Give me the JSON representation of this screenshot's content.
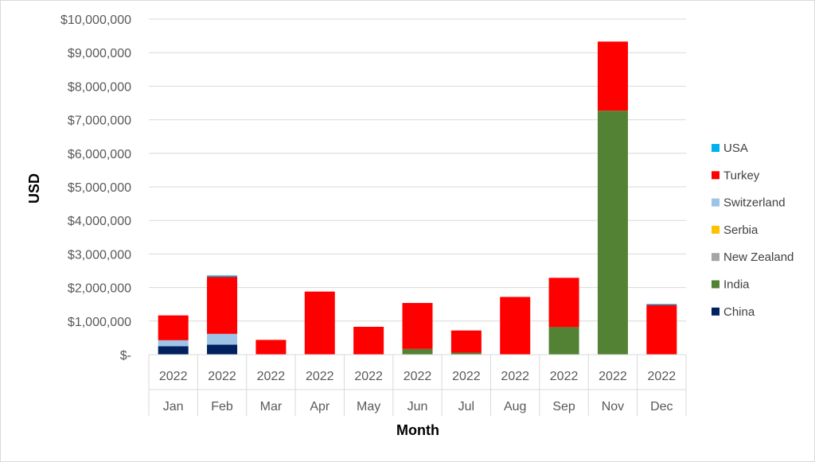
{
  "chart_data": {
    "type": "bar",
    "stacked": true,
    "xlabel": "Month",
    "ylabel": "USD",
    "ylim": [
      0,
      10000000
    ],
    "y_ticks": [
      0,
      1000000,
      2000000,
      3000000,
      4000000,
      5000000,
      6000000,
      7000000,
      8000000,
      9000000,
      10000000
    ],
    "y_tick_labels": [
      "$-",
      "$1,000,000",
      "$2,000,000",
      "$3,000,000",
      "$4,000,000",
      "$5,000,000",
      "$6,000,000",
      "$7,000,000",
      "$8,000,000",
      "$9,000,000",
      "$10,000,000"
    ],
    "categories": [
      {
        "year": "2022",
        "month": "Jan"
      },
      {
        "year": "2022",
        "month": "Feb"
      },
      {
        "year": "2022",
        "month": "Mar"
      },
      {
        "year": "2022",
        "month": "Apr"
      },
      {
        "year": "2022",
        "month": "May"
      },
      {
        "year": "2022",
        "month": "Jun"
      },
      {
        "year": "2022",
        "month": "Jul"
      },
      {
        "year": "2022",
        "month": "Aug"
      },
      {
        "year": "2022",
        "month": "Sep"
      },
      {
        "year": "2022",
        "month": "Nov"
      },
      {
        "year": "2022",
        "month": "Dec"
      }
    ],
    "series": [
      {
        "name": "China",
        "color": "#002060",
        "values": [
          250000,
          300000,
          0,
          0,
          0,
          0,
          0,
          0,
          0,
          0,
          0
        ]
      },
      {
        "name": "India",
        "color": "#548235",
        "values": [
          0,
          0,
          0,
          0,
          0,
          170000,
          60000,
          0,
          820000,
          7270000,
          0
        ]
      },
      {
        "name": "New Zealand",
        "color": "#a5a5a5",
        "values": [
          0,
          0,
          0,
          0,
          0,
          0,
          0,
          0,
          0,
          0,
          0
        ]
      },
      {
        "name": "Serbia",
        "color": "#ffc000",
        "values": [
          0,
          0,
          0,
          0,
          0,
          0,
          0,
          0,
          0,
          0,
          0
        ]
      },
      {
        "name": "Switzerland",
        "color": "#9dc3e6",
        "values": [
          180000,
          320000,
          0,
          0,
          0,
          0,
          0,
          0,
          0,
          0,
          0
        ]
      },
      {
        "name": "Turkey",
        "color": "#ff0000",
        "values": [
          740000,
          1700000,
          440000,
          1880000,
          830000,
          1370000,
          660000,
          1720000,
          1470000,
          2060000,
          1480000
        ]
      },
      {
        "name": "USA",
        "color": "#00b0f0",
        "values": [
          0,
          40000,
          0,
          0,
          0,
          0,
          0,
          0,
          0,
          0,
          30000
        ]
      }
    ],
    "legend": {
      "position": "right",
      "order": [
        "USA",
        "Turkey",
        "Switzerland",
        "Serbia",
        "New Zealand",
        "India",
        "China"
      ]
    },
    "grid": true
  }
}
